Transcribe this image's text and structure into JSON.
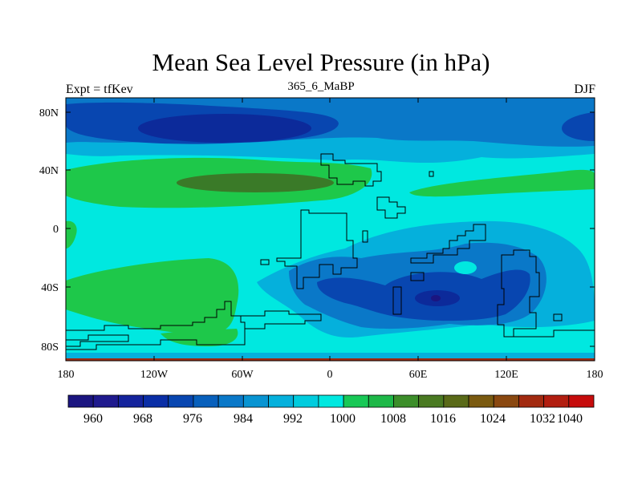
{
  "title": "Mean Sea Level Pressure (in hPa)",
  "subtitle": "365_6_MaBP",
  "left_label": "Expt = tfKev",
  "right_label": "DJF",
  "map": {
    "y_ticks": [
      "80N",
      "40N",
      "0",
      "40S",
      "80S"
    ],
    "x_ticks": [
      "180",
      "120W",
      "60W",
      "0",
      "60E",
      "120E",
      "180"
    ],
    "palette": {
      "960": "#1b1580",
      "968": "#0c2a9a",
      "976": "#0846b0",
      "984": "#0a78c8",
      "992": "#05b0dc",
      "1000": "#00e8e0",
      "1008": "#1ec84a",
      "1016": "#3a7a28",
      "1024": "#7a5a10",
      "1032": "#a22a10",
      "1040": "#c60c0c"
    }
  },
  "colorbar": {
    "labels": [
      "960",
      "968",
      "976",
      "984",
      "992",
      "1000",
      "1008",
      "1016",
      "1024",
      "1032",
      "1040"
    ],
    "colors": [
      "#1b1580",
      "#1f1a8e",
      "#14239c",
      "#0a2ea6",
      "#0846b0",
      "#0860bc",
      "#0a78c8",
      "#0894d2",
      "#05b0dc",
      "#00ccde",
      "#00e8e0",
      "#18c856",
      "#1eb848",
      "#3c8e2a",
      "#4a7a22",
      "#5a6a18",
      "#7a5a10",
      "#8a4810",
      "#a22a10",
      "#b21e10",
      "#c60c0c"
    ]
  }
}
